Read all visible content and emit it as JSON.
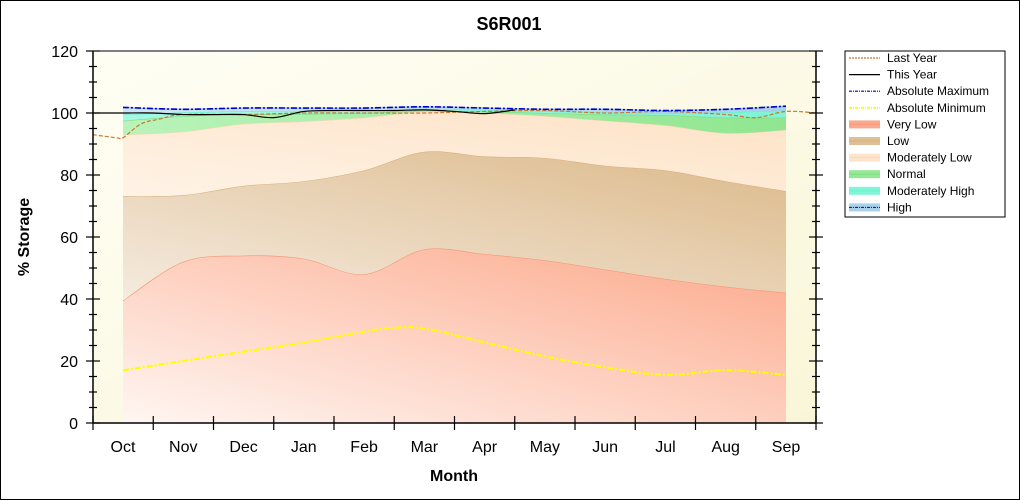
{
  "chart_data": {
    "type": "area",
    "title": "S6R001",
    "xlabel": "Month",
    "ylabel": "% Storage",
    "ylim": [
      0,
      120
    ],
    "yticks": [
      "0",
      "20",
      "40",
      "60",
      "80",
      "100",
      "120"
    ],
    "categories": [
      "Oct",
      "Nov",
      "Dec",
      "Jan",
      "Feb",
      "Mar",
      "Apr",
      "May",
      "Jun",
      "Jul",
      "Aug",
      "Sep"
    ],
    "legend_position": "right",
    "bands": [
      {
        "name": "Very Low",
        "color": "#f9a98f",
        "upper": [
          39.5,
          52,
          54,
          53,
          48,
          56,
          54.5,
          52.5,
          49.5,
          46.5,
          44,
          42
        ]
      },
      {
        "name": "Low",
        "color": "#dfbf95",
        "upper": [
          73.2,
          73.5,
          76.5,
          78,
          81.5,
          87.5,
          86,
          85.5,
          83,
          81.5,
          78,
          74.8
        ]
      },
      {
        "name": "Moderately Low",
        "color": "#fde5cc",
        "upper": [
          93,
          94,
          96.5,
          97.3,
          98.5,
          100.5,
          100,
          99,
          97.5,
          96,
          93.5,
          94.5
        ]
      },
      {
        "name": "Normal",
        "color": "#95e895",
        "upper": [
          97.5,
          99,
          99.5,
          99.7,
          100,
          100.8,
          100.5,
          100,
          99.5,
          99.3,
          98.5,
          98.5
        ]
      },
      {
        "name": "Moderately High",
        "color": "#80f5d8",
        "upper": [
          99.5,
          100.2,
          100.6,
          100.7,
          100.8,
          101.2,
          101,
          100.6,
          100.2,
          100,
          100.2,
          100.8
        ]
      },
      {
        "name": "High",
        "color": "#a9d1ea",
        "upper": [
          101.8,
          101.2,
          101.6,
          101.6,
          101.6,
          102,
          101.6,
          101.2,
          101.2,
          100.8,
          101.2,
          102.2
        ]
      }
    ],
    "series": [
      {
        "name": "Last Year",
        "color": "#c87830",
        "style": "dashed",
        "x": [
          -0.5,
          -0.1,
          0,
          0.3,
          0.6,
          1,
          2,
          3,
          4,
          5,
          6,
          7,
          8,
          9,
          10,
          10.5,
          11,
          11.5
        ],
        "values": [
          93,
          92,
          92,
          96.5,
          98,
          99.5,
          99.5,
          100,
          100,
          100,
          100.5,
          100.8,
          100,
          100.5,
          99.5,
          98.5,
          100.5,
          100
        ]
      },
      {
        "name": "This Year",
        "color": "#000000",
        "style": "solid",
        "x": [
          -0.5,
          0,
          0.5,
          1,
          1.5,
          2,
          2.5,
          3,
          3.5,
          4,
          4.5,
          5,
          5.5,
          6,
          6.5
        ],
        "values": [
          100,
          100,
          100,
          99.5,
          99.5,
          99.5,
          98.5,
          100.5,
          100.8,
          100.8,
          100.8,
          101,
          100.5,
          99.8,
          101
        ]
      },
      {
        "name": "Absolute Maximum",
        "color": "#0000cc",
        "style": "dash-dot",
        "x": [
          0,
          1,
          2,
          3,
          4,
          5,
          6,
          7,
          8,
          9,
          10,
          11
        ],
        "values": [
          101.8,
          101.2,
          101.6,
          101.6,
          101.6,
          102,
          101.6,
          101.2,
          101.2,
          100.8,
          101.2,
          102.2
        ]
      },
      {
        "name": "Absolute Minimum",
        "color": "#ffff00",
        "style": "dash-dot",
        "x": [
          0,
          1,
          2,
          3,
          4,
          4.5,
          5,
          6,
          7,
          8,
          9,
          10,
          11
        ],
        "values": [
          17,
          20,
          23,
          26,
          29.5,
          30.7,
          30.5,
          26,
          21.5,
          18,
          15.5,
          17,
          15.5
        ]
      }
    ],
    "legend": [
      "Last Year",
      "This Year",
      "Absolute Maximum",
      "Absolute Minimum",
      "Very Low",
      "Low",
      "Moderately Low",
      "Normal",
      "Moderately High",
      "High"
    ]
  }
}
